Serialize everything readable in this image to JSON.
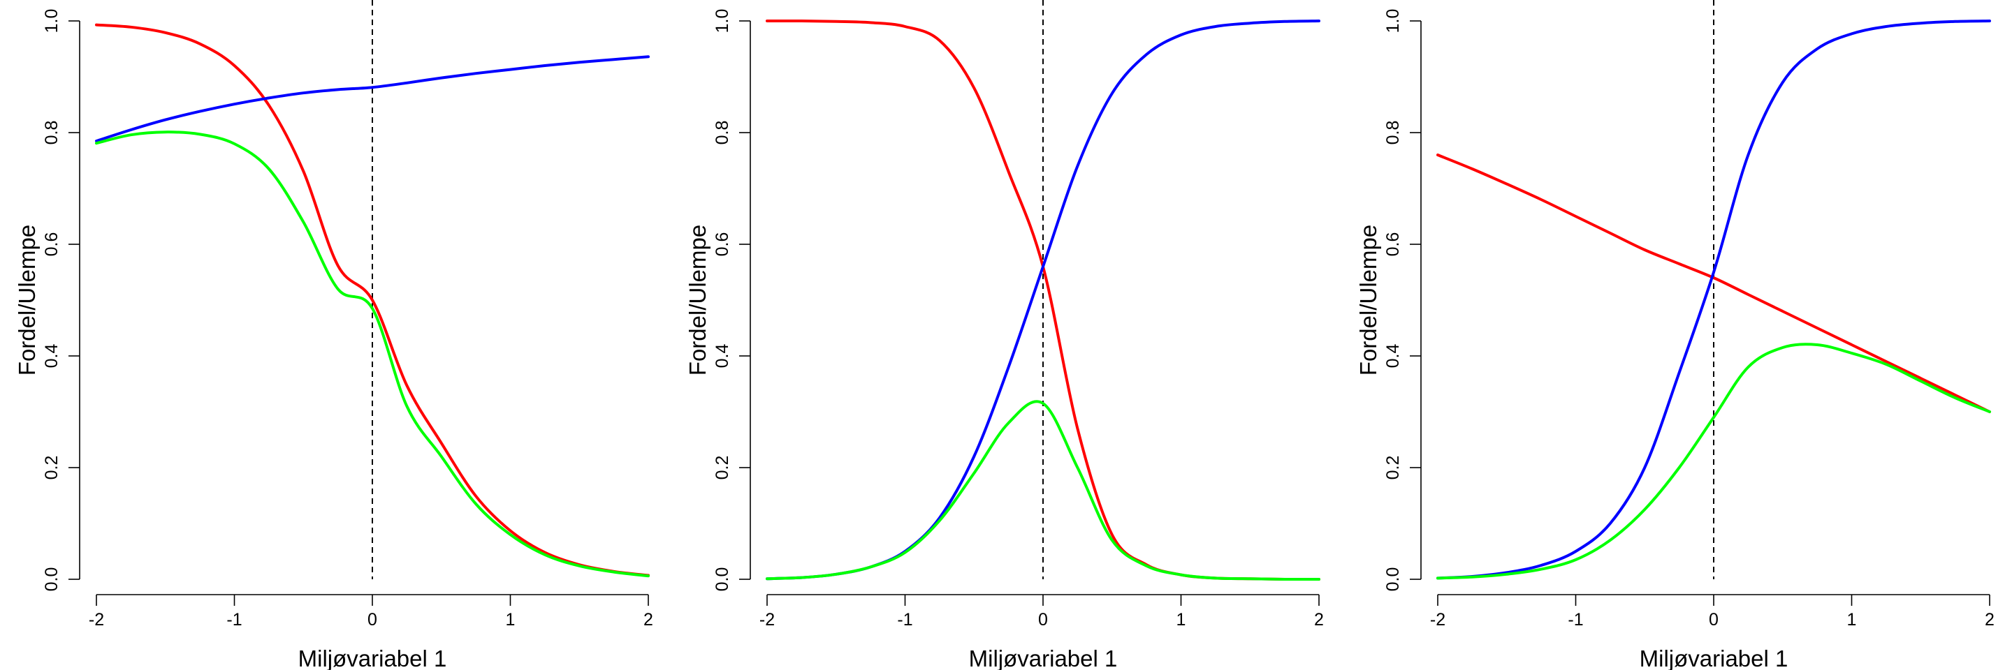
{
  "chart_data": [
    {
      "type": "line",
      "xlabel": "Miljøvariabel 1",
      "ylabel": "Fordel/Ulempe",
      "xlim": [
        -2,
        2
      ],
      "ylim": [
        0,
        1
      ],
      "x_ticks": [
        "-2",
        "-1",
        "0",
        "1",
        "2"
      ],
      "y_ticks": [
        "0.0",
        "0.2",
        "0.4",
        "0.6",
        "0.8",
        "1.0"
      ],
      "vline_x": 0,
      "x": [
        -2.0,
        -1.75,
        -1.5,
        -1.25,
        -1.0,
        -0.75,
        -0.5,
        -0.25,
        0.0,
        0.25,
        0.5,
        0.75,
        1.0,
        1.25,
        1.5,
        1.75,
        2.0
      ],
      "series": [
        {
          "color": "#ff0000",
          "values": [
            0.993,
            0.989,
            0.979,
            0.959,
            0.92,
            0.849,
            0.731,
            0.562,
            0.5,
            0.347,
            0.244,
            0.149,
            0.087,
            0.048,
            0.026,
            0.014,
            0.007
          ]
        },
        {
          "color": "#0000ff",
          "values": [
            0.785,
            0.805,
            0.823,
            0.838,
            0.851,
            0.862,
            0.871,
            0.877,
            0.881,
            0.889,
            0.898,
            0.906,
            0.913,
            0.92,
            0.926,
            0.931,
            0.936
          ]
        },
        {
          "color": "#00ff00",
          "values": [
            0.781,
            0.796,
            0.801,
            0.797,
            0.78,
            0.735,
            0.64,
            0.52,
            0.485,
            0.31,
            0.22,
            0.135,
            0.08,
            0.044,
            0.024,
            0.013,
            0.006
          ]
        }
      ]
    },
    {
      "type": "line",
      "xlabel": "Miljøvariabel 1",
      "ylabel": "Fordel/Ulempe",
      "xlim": [
        -2,
        2
      ],
      "ylim": [
        0,
        1
      ],
      "x_ticks": [
        "-2",
        "-1",
        "0",
        "1",
        "2"
      ],
      "y_ticks": [
        "0.0",
        "0.2",
        "0.4",
        "0.6",
        "0.8",
        "1.0"
      ],
      "vline_x": 0,
      "x": [
        -2.0,
        -1.75,
        -1.5,
        -1.25,
        -1.0,
        -0.75,
        -0.5,
        -0.25,
        0.0,
        0.25,
        0.5,
        0.75,
        1.0,
        1.25,
        1.5,
        1.75,
        2.0
      ],
      "series": [
        {
          "color": "#ff0000",
          "values": [
            1.0,
            1.0,
            0.999,
            0.997,
            0.99,
            0.965,
            0.88,
            0.73,
            0.56,
            0.27,
            0.08,
            0.026,
            0.008,
            0.002,
            0.001,
            0.0,
            0.0
          ]
        },
        {
          "color": "#0000ff",
          "values": [
            0.001,
            0.003,
            0.009,
            0.022,
            0.05,
            0.11,
            0.22,
            0.38,
            0.56,
            0.74,
            0.87,
            0.94,
            0.975,
            0.99,
            0.996,
            0.999,
            1.0
          ]
        },
        {
          "color": "#00ff00",
          "values": [
            0.001,
            0.003,
            0.009,
            0.022,
            0.048,
            0.105,
            0.19,
            0.28,
            0.315,
            0.2,
            0.07,
            0.024,
            0.008,
            0.002,
            0.001,
            0.0,
            0.0
          ]
        }
      ]
    },
    {
      "type": "line",
      "xlabel": "Miljøvariabel 1",
      "ylabel": "Fordel/Ulempe",
      "xlim": [
        -2,
        2
      ],
      "ylim": [
        0,
        1
      ],
      "x_ticks": [
        "-2",
        "-1",
        "0",
        "1",
        "2"
      ],
      "y_ticks": [
        "0.0",
        "0.2",
        "0.4",
        "0.6",
        "0.8",
        "1.0"
      ],
      "vline_x": 0,
      "x": [
        -2.0,
        -1.75,
        -1.5,
        -1.25,
        -1.0,
        -0.75,
        -0.5,
        -0.25,
        0.0,
        0.25,
        0.5,
        0.75,
        1.0,
        1.25,
        1.5,
        1.75,
        2.0
      ],
      "series": [
        {
          "color": "#ff0000",
          "values": [
            0.76,
            0.735,
            0.708,
            0.68,
            0.65,
            0.62,
            0.59,
            0.565,
            0.54,
            0.51,
            0.48,
            0.45,
            0.42,
            0.39,
            0.36,
            0.33,
            0.3
          ]
        },
        {
          "color": "#0000ff",
          "values": [
            0.002,
            0.005,
            0.012,
            0.025,
            0.05,
            0.1,
            0.2,
            0.37,
            0.55,
            0.76,
            0.89,
            0.95,
            0.977,
            0.99,
            0.996,
            0.999,
            1.0
          ]
        },
        {
          "color": "#00ff00",
          "values": [
            0.002,
            0.004,
            0.009,
            0.018,
            0.035,
            0.07,
            0.125,
            0.2,
            0.29,
            0.38,
            0.415,
            0.42,
            0.405,
            0.385,
            0.355,
            0.325,
            0.3
          ]
        }
      ]
    }
  ]
}
